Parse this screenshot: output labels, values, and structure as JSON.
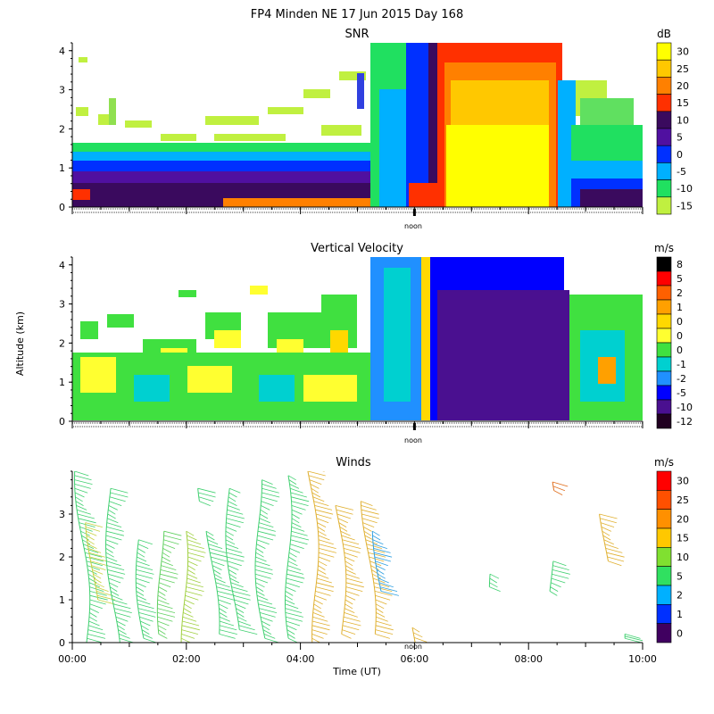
{
  "figure": {
    "title": "FP4 Minden NE  17 Jun 2015 Day 168",
    "ylabel": "Altitude (km)",
    "xlabel": "Time (UT)",
    "noon_label": "noon"
  },
  "chart_data": [
    {
      "type": "heatmap",
      "title": "SNR",
      "unit": "dB",
      "ylim": [
        0,
        4.2
      ],
      "yticks": [
        "0",
        "1",
        "2",
        "3",
        "4"
      ],
      "colorbar_labels": [
        "30",
        "25",
        "20",
        "15",
        "10",
        "5",
        "0",
        "-5",
        "-10",
        "-15"
      ],
      "colorbar_colors": [
        "#ffff00",
        "#ffc800",
        "#ff8000",
        "#ff3000",
        "#3a0a5e",
        "#5010a0",
        "#0030ff",
        "#00b0ff",
        "#20e060",
        "#c0f040"
      ]
    },
    {
      "type": "heatmap",
      "title": "Vertical Velocity",
      "unit": "m/s",
      "ylim": [
        0,
        4.2
      ],
      "yticks": [
        "0",
        "1",
        "2",
        "3",
        "4"
      ],
      "colorbar_labels": [
        "8",
        "5",
        "2",
        "1",
        "0",
        "0",
        "0",
        "-1",
        "-2",
        "-5",
        "-10",
        "-12"
      ],
      "colorbar_colors": [
        "#000000",
        "#ff0000",
        "#ff6000",
        "#ffa000",
        "#ffd800",
        "#ffff30",
        "#40e040",
        "#00d0d0",
        "#2090ff",
        "#0000ff",
        "#4a1090",
        "#200020"
      ]
    },
    {
      "type": "scatter",
      "title": "Winds",
      "unit": "m/s",
      "ylim": [
        0,
        4
      ],
      "xlim_hours": [
        0,
        10
      ],
      "yticks": [
        "0",
        "1",
        "2",
        "3"
      ],
      "xticks": [
        "00:00",
        "02:00",
        "04:00",
        "06:00",
        "08:00",
        "10:00"
      ],
      "colorbar_labels": [
        "30",
        "25",
        "20",
        "15",
        "10",
        "5",
        "2",
        "1",
        "0"
      ],
      "colorbar_colors": [
        "#ff0000",
        "#ff5000",
        "#ff9000",
        "#ffc800",
        "#80e030",
        "#30e060",
        "#00b0ff",
        "#0030ff",
        "#400060"
      ],
      "profiles": [
        {
          "t": 0.25,
          "bottom": 0.0,
          "top": 4.0,
          "color": "#40d070"
        },
        {
          "t": 0.38,
          "bottom": 1.0,
          "top": 2.8,
          "color": "#c8d040"
        },
        {
          "t": 0.75,
          "bottom": 0.0,
          "top": 3.6,
          "color": "#40d070"
        },
        {
          "t": 1.25,
          "bottom": 0.1,
          "top": 2.4,
          "color": "#40d070"
        },
        {
          "t": 1.6,
          "bottom": 0.2,
          "top": 2.6,
          "color": "#60d060"
        },
        {
          "t": 2.0,
          "bottom": 0.0,
          "top": 2.6,
          "color": "#a0d040"
        },
        {
          "t": 2.3,
          "bottom": 3.3,
          "top": 3.6,
          "color": "#40d070"
        },
        {
          "t": 2.5,
          "bottom": 0.2,
          "top": 2.6,
          "color": "#40d070"
        },
        {
          "t": 2.85,
          "bottom": 0.3,
          "top": 3.6,
          "color": "#40d070"
        },
        {
          "t": 3.35,
          "bottom": 0.1,
          "top": 3.8,
          "color": "#40d070"
        },
        {
          "t": 3.85,
          "bottom": 0.1,
          "top": 3.9,
          "color": "#40d070"
        },
        {
          "t": 4.3,
          "bottom": 0.0,
          "top": 4.1,
          "color": "#e0b030"
        },
        {
          "t": 4.75,
          "bottom": 0.2,
          "top": 3.2,
          "color": "#e0b030"
        },
        {
          "t": 5.25,
          "bottom": 0.2,
          "top": 3.3,
          "color": "#e0b030"
        },
        {
          "t": 5.4,
          "bottom": 1.2,
          "top": 2.6,
          "color": "#30a0e0"
        },
        {
          "t": 5.95,
          "bottom": 0.0,
          "top": 0.35,
          "color": "#e0b030"
        },
        {
          "t": 7.4,
          "bottom": 1.3,
          "top": 1.6,
          "color": "#40d070"
        },
        {
          "t": 8.4,
          "bottom": 1.2,
          "top": 1.9,
          "color": "#40d070"
        },
        {
          "t": 8.5,
          "bottom": 3.55,
          "top": 3.75,
          "color": "#e07020"
        },
        {
          "t": 9.35,
          "bottom": 1.9,
          "top": 3.0,
          "color": "#e0b030"
        },
        {
          "t": 9.6,
          "bottom": 0.1,
          "top": 0.2,
          "color": "#40d070"
        }
      ]
    }
  ]
}
